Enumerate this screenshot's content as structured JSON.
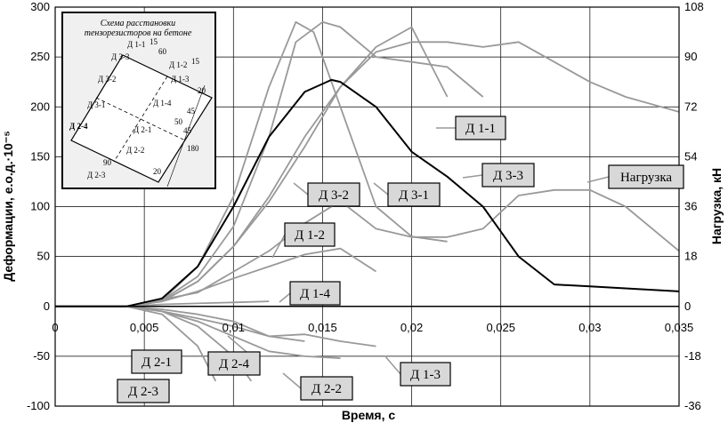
{
  "chart_data": {
    "type": "line",
    "title": "",
    "xlabel": "Время, с",
    "ylabel": "Деформации, е.о.д.·10⁻⁵",
    "y2label": "Нагрузка, кН",
    "xlim": [
      0,
      0.035
    ],
    "ylim": [
      -100,
      300
    ],
    "y2lim": [
      -36,
      108
    ],
    "grid": true,
    "x_ticks": [
      "0",
      "0,005",
      "0,01",
      "0,015",
      "0,02",
      "0,025",
      "0,03",
      "0,035"
    ],
    "y_ticks": [
      "-100",
      "-50",
      "0",
      "50",
      "100",
      "150",
      "200",
      "250",
      "300"
    ],
    "y2_ticks": [
      "-36",
      "-18",
      "0",
      "18",
      "36",
      "54",
      "72",
      "90",
      "108"
    ],
    "series": [
      {
        "name": "Д 1-1",
        "axis": "left",
        "color": "#999999",
        "x": [
          0,
          0.004,
          0.006,
          0.008,
          0.01,
          0.012,
          0.014,
          0.016,
          0.018,
          0.02,
          0.022
        ],
        "y": [
          0,
          0,
          5,
          25,
          60,
          105,
          160,
          220,
          260,
          280,
          210
        ]
      },
      {
        "name": "Д 1-2",
        "axis": "left",
        "color": "#999999",
        "x": [
          0,
          0.004,
          0.006,
          0.008,
          0.01,
          0.012,
          0.014,
          0.016,
          0.018
        ],
        "y": [
          0,
          0,
          5,
          15,
          28,
          40,
          52,
          58,
          35
        ]
      },
      {
        "name": "Д 1-3",
        "axis": "left",
        "color": "#999999",
        "x": [
          0,
          0.004,
          0.006,
          0.008,
          0.01,
          0.012,
          0.014,
          0.016,
          0.018
        ],
        "y": [
          0,
          0,
          -3,
          -8,
          -15,
          -30,
          -28,
          -35,
          -40
        ]
      },
      {
        "name": "Д 1-4",
        "axis": "left",
        "color": "#999999",
        "x": [
          0,
          0.004,
          0.006,
          0.008,
          0.01,
          0.012
        ],
        "y": [
          0,
          0,
          2,
          3,
          4,
          5
        ]
      },
      {
        "name": "Д 2-1",
        "axis": "left",
        "color": "#999999",
        "x": [
          0,
          0.004,
          0.006,
          0.008,
          0.01,
          0.012,
          0.014
        ],
        "y": [
          0,
          0,
          -5,
          -12,
          -20,
          -30,
          -35
        ]
      },
      {
        "name": "Д 2-2",
        "axis": "left",
        "color": "#999999",
        "x": [
          0,
          0.004,
          0.006,
          0.008,
          0.01,
          0.012,
          0.014,
          0.016
        ],
        "y": [
          0,
          0,
          -5,
          -15,
          -30,
          -45,
          -50,
          -52
        ]
      },
      {
        "name": "Д 2-3",
        "axis": "left",
        "color": "#999999",
        "x": [
          0,
          0.004,
          0.006,
          0.008,
          0.009
        ],
        "y": [
          0,
          0,
          -8,
          -40,
          -75
        ]
      },
      {
        "name": "Д 2-4",
        "axis": "left",
        "color": "#999999",
        "x": [
          0,
          0.004,
          0.006,
          0.008,
          0.01,
          0.011
        ],
        "y": [
          0,
          0,
          -5,
          -20,
          -50,
          -75
        ]
      },
      {
        "name": "Д 3-1",
        "axis": "left",
        "color": "#999999",
        "x": [
          0,
          0.004,
          0.006,
          0.008,
          0.01,
          0.012,
          0.0135,
          0.015,
          0.016,
          0.018,
          0.02,
          0.022,
          0.024
        ],
        "y": [
          0,
          0,
          6,
          30,
          80,
          170,
          265,
          285,
          280,
          250,
          245,
          240,
          210
        ]
      },
      {
        "name": "Д 3-2",
        "axis": "left",
        "color": "#999999",
        "x": [
          0,
          0.004,
          0.006,
          0.008,
          0.01,
          0.012,
          0.0135,
          0.0145,
          0.016,
          0.018,
          0.02,
          0.022
        ],
        "y": [
          0,
          0,
          6,
          40,
          110,
          220,
          285,
          275,
          200,
          100,
          70,
          65
        ]
      },
      {
        "name": "Д 3-3",
        "axis": "left",
        "color": "#999999",
        "x": [
          0,
          0.004,
          0.006,
          0.008,
          0.01,
          0.012,
          0.014,
          0.016,
          0.018,
          0.02,
          0.022,
          0.024,
          0.026,
          0.028,
          0.03,
          0.032,
          0.035
        ],
        "y": [
          0,
          0,
          5,
          25,
          60,
          110,
          170,
          220,
          255,
          265,
          265,
          260,
          265,
          245,
          225,
          210,
          195
        ]
      },
      {
        "name": "Нагрузка",
        "axis": "right",
        "color": "#999999",
        "x": [
          0,
          0.004,
          0.008,
          0.012,
          0.014,
          0.016,
          0.018,
          0.02,
          0.022,
          0.024,
          0.026,
          0.028,
          0.03,
          0.032,
          0.035
        ],
        "y": [
          0,
          0,
          5,
          20,
          30,
          38,
          28,
          25,
          25,
          28,
          40,
          42,
          42,
          36,
          20
        ]
      },
      {
        "name": "",
        "axis": "left",
        "color": "#000000",
        "x": [
          0,
          0.004,
          0.006,
          0.008,
          0.01,
          0.012,
          0.014,
          0.0155,
          0.016,
          0.018,
          0.02,
          0.022,
          0.024,
          0.026,
          0.028,
          0.03,
          0.032,
          0.035
        ],
        "y": [
          0,
          0,
          8,
          40,
          100,
          170,
          215,
          227,
          225,
          200,
          155,
          130,
          100,
          50,
          22,
          20,
          18,
          15
        ]
      }
    ],
    "labels": [
      "Д 1-1",
      "Д 3-3",
      "Нагрузка",
      "Д 3-2",
      "Д 3-1",
      "Д 1-2",
      "Д 1-4",
      "Д 2-1",
      "Д 2-4",
      "Д 2-3",
      "Д 2-2",
      "Д 1-3"
    ]
  },
  "inset": {
    "title_line1": "Схема расстановки",
    "title_line2": "тензорезисторов на бетоне",
    "labels": [
      "Д 1-1",
      "Д 3-3",
      "Д 1-2",
      "Д 1-3",
      "Д 3-2",
      "Д 3-1",
      "Д 1-4",
      "Д 2-4",
      "Д 2-1",
      "Д 2-2",
      "Д 2-3"
    ],
    "dims": [
      "15",
      "60",
      "15",
      "20",
      "45",
      "45",
      "50",
      "180",
      "20",
      "90"
    ]
  }
}
